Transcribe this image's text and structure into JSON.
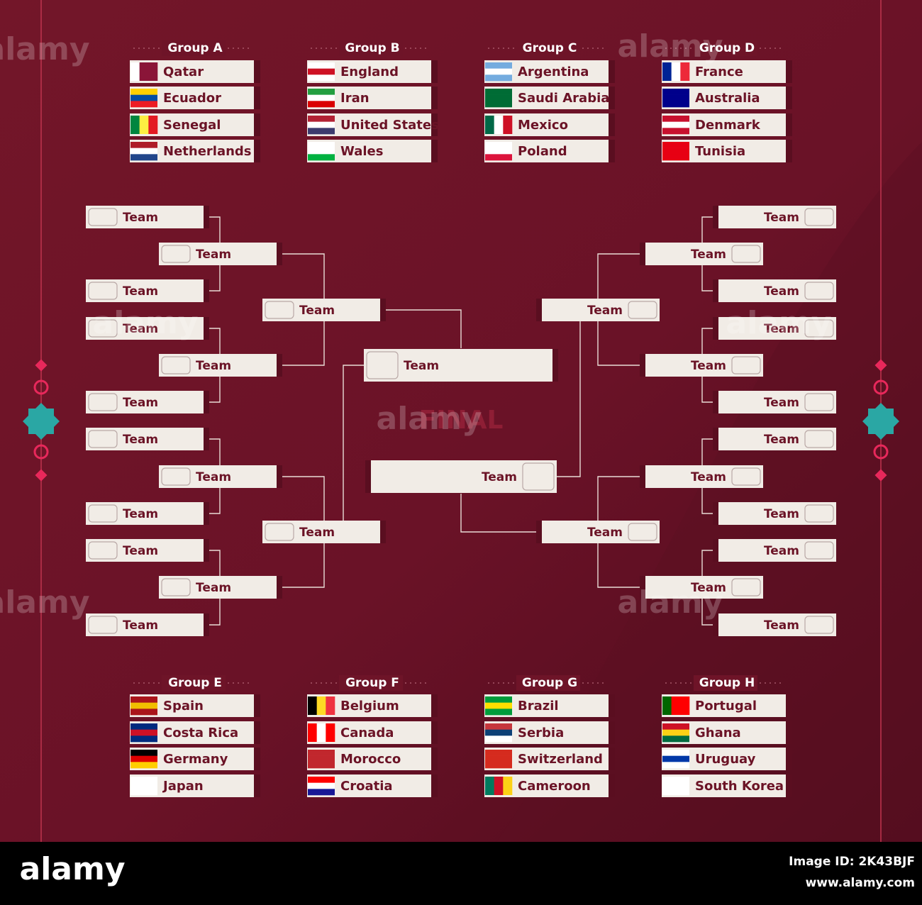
{
  "groups": [
    {
      "title": "Group A",
      "teams": [
        "Qatar",
        "Ecuador",
        "Senegal",
        "Netherlands"
      ]
    },
    {
      "title": "Group B",
      "teams": [
        "England",
        "Iran",
        "United States",
        "Wales"
      ]
    },
    {
      "title": "Group C",
      "teams": [
        "Argentina",
        "Saudi Arabia",
        "Mexico",
        "Poland"
      ]
    },
    {
      "title": "Group D",
      "teams": [
        "France",
        "Australia",
        "Denmark",
        "Tunisia"
      ]
    },
    {
      "title": "Group E",
      "teams": [
        "Spain",
        "Costa Rica",
        "Germany",
        "Japan"
      ]
    },
    {
      "title": "Group F",
      "teams": [
        "Belgium",
        "Canada",
        "Morocco",
        "Croatia"
      ]
    },
    {
      "title": "Group G",
      "teams": [
        "Brazil",
        "Serbia",
        "Switzerland",
        "Cameroon"
      ]
    },
    {
      "title": "Group H",
      "teams": [
        "Portugal",
        "Ghana",
        "Uruguay",
        "South Korea"
      ]
    }
  ],
  "bracket": {
    "left": {
      "round_of_16": [
        "Team",
        "Team",
        "Team",
        "Team",
        "Team",
        "Team",
        "Team",
        "Team"
      ],
      "quarter_finals": [
        "Team",
        "Team",
        "Team",
        "Team"
      ],
      "semi_finals": [
        "Team",
        "Team"
      ]
    },
    "right": {
      "round_of_16": [
        "Team",
        "Team",
        "Team",
        "Team",
        "Team",
        "Team",
        "Team",
        "Team"
      ],
      "quarter_finals": [
        "Team",
        "Team",
        "Team",
        "Team"
      ],
      "semi_finals": [
        "Team",
        "Team"
      ]
    },
    "final": [
      "Team",
      "Team"
    ],
    "final_label": "FINAL"
  },
  "watermark": "alamy",
  "footer": {
    "logo": "alamy",
    "image_id": "Image ID: 2K43BJF",
    "url": "www.alamy.com"
  }
}
